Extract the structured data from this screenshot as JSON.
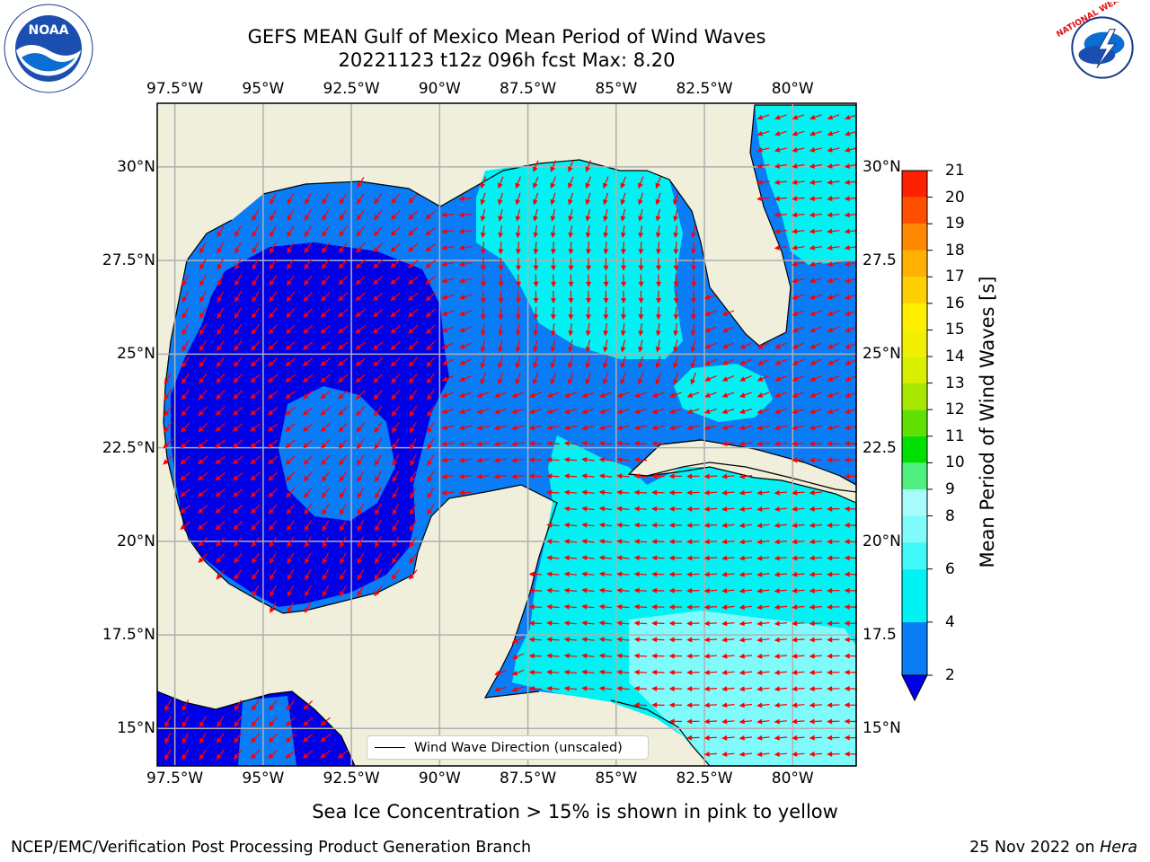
{
  "title": {
    "line1": "GEFS MEAN Gulf of Mexico Mean Period of Wind Waves",
    "line2": "20221123 t12z 096h fcst   Max: 8.20"
  },
  "axes": {
    "lon_ticks": [
      "97.5°W",
      "95°W",
      "92.5°W",
      "90°W",
      "87.5°W",
      "85°W",
      "82.5°W",
      "80°W"
    ],
    "lon_values": [
      -97.5,
      -95,
      -92.5,
      -90,
      -87.5,
      -85,
      -82.5,
      -80
    ],
    "lat_ticks_left": [
      "30°N",
      "27.5°N",
      "25°N",
      "22.5°N",
      "20°N",
      "17.5°N",
      "15°N"
    ],
    "lat_ticks_right": [
      "30°N",
      "27.5",
      "25°N",
      "22.5",
      "20°N",
      "17.5",
      "15°N"
    ],
    "lat_values": [
      30,
      27.5,
      25,
      22.5,
      20,
      17.5,
      15
    ],
    "extent": {
      "lon_min": -98,
      "lon_max": -78.2,
      "lat_min": 14,
      "lat_max": 31.7
    }
  },
  "colorbar": {
    "label": "Mean Period of Wind Waves [s]",
    "ticks": [
      "21",
      "20",
      "19",
      "18",
      "17",
      "16",
      "15",
      "14",
      "13",
      "12",
      "11",
      "10",
      "9",
      "8",
      "6",
      "4",
      "2"
    ],
    "tick_values": [
      21,
      20,
      19,
      18,
      17,
      16,
      15,
      14,
      13,
      12,
      11,
      10,
      9,
      8,
      6,
      4,
      2
    ],
    "levels": [
      2,
      4,
      6,
      7,
      8,
      9,
      10,
      11,
      12,
      13,
      14,
      15,
      16,
      17,
      18,
      19,
      20,
      21
    ],
    "colors": [
      "#0a7cf5",
      "#00f2f2",
      "#40f8f8",
      "#80fbfb",
      "#a8fcfc",
      "#50f080",
      "#00e000",
      "#60e000",
      "#a8e800",
      "#d8f000",
      "#f0f000",
      "#fff000",
      "#ffd000",
      "#ffb000",
      "#ff8800",
      "#ff5000",
      "#ff2000",
      "#ff0000"
    ],
    "under_color": "#0000e6"
  },
  "legend": {
    "label": "Wind Wave Direction (unscaled)"
  },
  "field_colors": {
    "land": "#efefdc",
    "deep": "#0000e6",
    "mid": "#0a7cf5",
    "light": "#00f2f2",
    "pale": "#80fbfb",
    "arrow": "#ff0000"
  },
  "note": "Sea Ice Concentration > 15% is shown in pink to yellow",
  "footer": {
    "left": "NCEP/EMC/Verification Post Processing Product Generation Branch",
    "date": "25 Nov 2022 on",
    "host": "Hera"
  },
  "logos": {
    "noaa": "NOAA",
    "nws": "NATIONAL WEATHER SERVICE"
  }
}
